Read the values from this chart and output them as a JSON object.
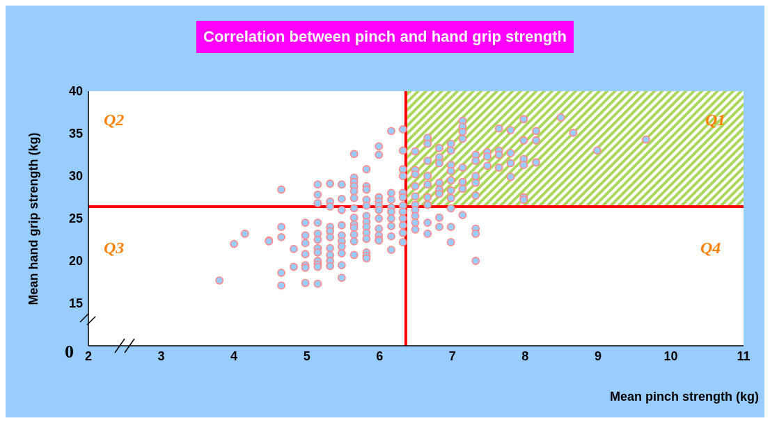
{
  "chart_data": {
    "type": "scatter",
    "title": "Correlation between pinch and hand grip strength",
    "xlabel": "Mean pinch strength (kg)",
    "ylabel": "Mean hand grip strength (kg)",
    "xlim": [
      2,
      11
    ],
    "xticks": [
      2,
      3,
      4,
      5,
      6,
      7,
      8,
      9,
      10,
      11
    ],
    "ylim": [
      10,
      40
    ],
    "yticks": [
      15,
      20,
      25,
      30,
      35,
      40
    ],
    "marker": "circle",
    "ref_lines": [
      {
        "axis": "x",
        "value": 6.36,
        "color": "#ff0000"
      },
      {
        "axis": "y",
        "value": 26.4,
        "color": "#ff0000"
      }
    ],
    "bands": [
      {
        "axis": "x",
        "from": 6.36,
        "to": 11,
        "color": "#99cc33"
      }
    ],
    "annotations": [
      "Q1",
      "Q2",
      "Q3",
      "Q4",
      "0"
    ],
    "x": [
      3.8,
      4.0,
      4.15,
      4.48,
      4.48,
      4.65,
      4.65,
      4.65,
      4.65,
      4.65,
      4.82,
      4.82,
      4.98,
      4.98,
      4.98,
      4.98,
      4.98,
      4.98,
      4.98,
      5.15,
      5.15,
      5.15,
      5.15,
      5.15,
      5.15,
      5.15,
      5.15,
      5.15,
      5.15,
      5.15,
      5.15,
      5.32,
      5.32,
      5.32,
      5.32,
      5.32,
      5.32,
      5.32,
      5.32,
      5.32,
      5.32,
      5.48,
      5.48,
      5.48,
      5.48,
      5.48,
      5.48,
      5.48,
      5.48,
      5.48,
      5.48,
      5.65,
      5.65,
      5.65,
      5.65,
      5.65,
      5.65,
      5.65,
      5.65,
      5.65,
      5.65,
      5.65,
      5.65,
      5.65,
      5.82,
      5.82,
      5.82,
      5.82,
      5.82,
      5.82,
      5.82,
      5.82,
      5.82,
      5.82,
      5.82,
      5.82,
      5.82,
      5.99,
      5.99,
      5.99,
      5.99,
      5.99,
      5.99,
      5.99,
      5.99,
      5.99,
      5.99,
      5.99,
      6.16,
      6.16,
      6.16,
      6.16,
      6.16,
      6.16,
      6.16,
      6.16,
      6.16,
      6.32,
      6.32,
      6.32,
      6.32,
      6.32,
      6.32,
      6.32,
      6.32,
      6.32,
      6.32,
      6.32,
      6.32,
      6.49,
      6.49,
      6.49,
      6.49,
      6.49,
      6.49,
      6.49,
      6.49,
      6.49,
      6.49,
      6.66,
      6.66,
      6.66,
      6.66,
      6.66,
      6.66,
      6.66,
      6.66,
      6.66,
      6.82,
      6.82,
      6.82,
      6.82,
      6.82,
      6.82,
      6.82,
      6.82,
      6.98,
      6.98,
      6.98,
      6.98,
      6.98,
      6.98,
      6.98,
      6.98,
      6.98,
      6.98,
      7.14,
      7.14,
      7.14,
      7.14,
      7.14,
      7.14,
      7.14,
      7.14,
      7.32,
      7.32,
      7.32,
      7.32,
      7.32,
      7.32,
      7.32,
      7.32,
      7.48,
      7.48,
      7.48,
      7.64,
      7.64,
      7.64,
      7.64,
      7.8,
      7.8,
      7.8,
      7.8,
      7.98,
      7.98,
      7.98,
      7.98,
      7.98,
      7.98,
      8.15,
      8.15,
      8.15,
      8.49,
      8.66,
      8.99,
      9.66
    ],
    "values": [
      17.7,
      22.0,
      23.2,
      22.4,
      22.3,
      28.4,
      24.0,
      22.8,
      18.6,
      17.1,
      21.4,
      19.3,
      24.5,
      23.0,
      22.1,
      20.8,
      19.5,
      19.2,
      17.4,
      29.0,
      27.8,
      26.8,
      24.5,
      23.2,
      22.5,
      21.5,
      21.0,
      20.0,
      19.6,
      19.3,
      17.3,
      29.1,
      27.0,
      26.4,
      24.0,
      23.5,
      22.8,
      21.5,
      20.7,
      20.0,
      19.4,
      29.0,
      27.3,
      26.0,
      24.2,
      23.0,
      22.3,
      21.7,
      20.9,
      19.5,
      18.0,
      32.6,
      29.8,
      29.3,
      28.8,
      28.2,
      27.4,
      26.2,
      25.1,
      24.3,
      23.9,
      23.1,
      22.3,
      20.7,
      30.8,
      28.8,
      28.4,
      27.2,
      26.5,
      25.3,
      24.6,
      24.0,
      23.3,
      22.6,
      21.0,
      20.6,
      20.3,
      33.5,
      32.5,
      27.5,
      27.0,
      26.5,
      26.0,
      25.0,
      23.8,
      23.0,
      22.5,
      22.4,
      35.3,
      28.0,
      27.2,
      26.3,
      25.8,
      25.0,
      24.1,
      22.9,
      21.3,
      35.5,
      33.0,
      30.8,
      30.0,
      28.0,
      27.5,
      26.5,
      25.8,
      25.0,
      24.2,
      23.3,
      22.2,
      32.9,
      30.7,
      30.2,
      28.8,
      27.6,
      26.6,
      26.0,
      25.3,
      24.5,
      23.7,
      34.5,
      33.8,
      31.8,
      30.0,
      29.0,
      27.5,
      26.6,
      24.5,
      23.2,
      33.3,
      32.2,
      31.5,
      29.2,
      28.4,
      27.9,
      25.1,
      24.0,
      33.8,
      33.0,
      31.3,
      30.6,
      29.5,
      28.3,
      27.4,
      26.2,
      24.0,
      22.2,
      36.5,
      35.8,
      35.2,
      34.4,
      31.0,
      29.3,
      28.5,
      25.4,
      32.5,
      31.8,
      30.0,
      29.2,
      27.7,
      23.8,
      23.2,
      20.0,
      32.8,
      32.3,
      31.2,
      35.6,
      33.0,
      32.5,
      31.0,
      35.4,
      32.7,
      31.5,
      29.9,
      36.7,
      34.2,
      32.0,
      31.3,
      27.5,
      27.2,
      35.3,
      34.2,
      31.6,
      36.9,
      35.1,
      33.0,
      34.3
    ],
    "color": "#99ccff"
  }
}
